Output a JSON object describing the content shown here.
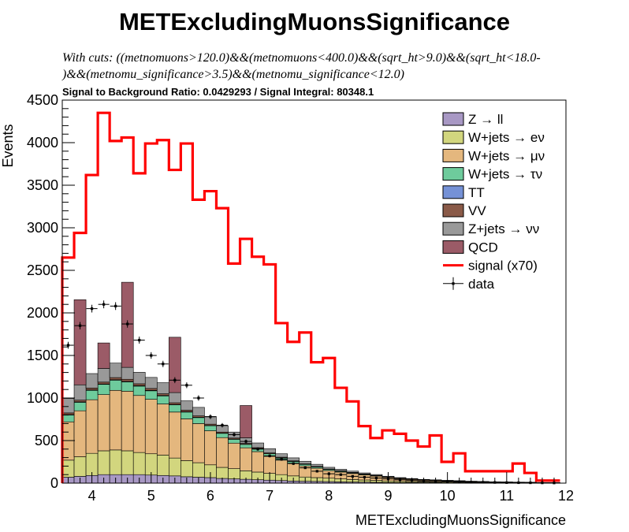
{
  "chart_data": {
    "type": "histogram-stack",
    "title": "METExcludingMuonsSignificance",
    "cuts_line1": "With cuts: ((metnomuons>120.0)&&(metnomuons<400.0)&&(sqrt_ht>9.0)&&(sqrt_ht<18.0-",
    "cuts_line2": ")&&(metnomu_significance>3.5)&&(metnomu_significance<12.0)",
    "ratio_text": "Signal to Background Ratio: 0.0429293 / Signal Integral: 80348.1",
    "xlabel": "METExcludingMuonsSignificance",
    "ylabel": "Events",
    "xlim": [
      3.5,
      12
    ],
    "ylim": [
      0,
      4500
    ],
    "xticks": [
      4,
      5,
      6,
      7,
      8,
      9,
      10,
      11,
      12
    ],
    "yticks": [
      0,
      500,
      1000,
      1500,
      2000,
      2500,
      3000,
      3500,
      4000,
      4500
    ],
    "bin_width": 0.2,
    "legend_position": "top-right",
    "legend": [
      {
        "label": "Z → ll",
        "color": "#a898c4",
        "kind": "box"
      },
      {
        "label": "W+jets → eν",
        "color": "#d2d67e",
        "kind": "box"
      },
      {
        "label": "W+jets → μν",
        "color": "#e4b77e",
        "kind": "box"
      },
      {
        "label": "W+jets → τν",
        "color": "#6ecb9c",
        "kind": "box"
      },
      {
        "label": "TT",
        "color": "#7591d6",
        "kind": "box"
      },
      {
        "label": "VV",
        "color": "#8a5a48",
        "kind": "box"
      },
      {
        "label": "Z+jets → νν",
        "color": "#999999",
        "kind": "box"
      },
      {
        "label": "QCD",
        "color": "#9b5b67",
        "kind": "box"
      },
      {
        "label": "signal (x70)",
        "color": "#ff0000",
        "kind": "line"
      },
      {
        "label": "data",
        "color": "#000000",
        "kind": "marker"
      }
    ],
    "bin_edges": [
      3.5,
      3.7,
      3.9,
      4.1,
      4.3,
      4.5,
      4.7,
      4.9,
      5.1,
      5.3,
      5.5,
      5.7,
      5.9,
      6.1,
      6.3,
      6.5,
      6.7,
      6.9,
      7.1,
      7.3,
      7.5,
      7.7,
      7.9,
      8.1,
      8.3,
      8.5,
      8.7,
      8.9,
      9.1,
      9.3,
      9.5,
      9.7,
      9.9,
      10.1,
      10.3,
      10.5,
      10.7,
      10.9,
      11.1,
      11.3,
      11.5,
      11.7,
      11.9
    ],
    "series": [
      {
        "name": "Z → ll",
        "color": "#a898c4",
        "values": [
          70,
          80,
          90,
          100,
          100,
          100,
          100,
          95,
          90,
          85,
          75,
          70,
          65,
          55,
          50,
          45,
          40,
          35,
          30,
          25,
          22,
          20,
          18,
          15,
          13,
          12,
          10,
          8,
          7,
          6,
          5,
          5,
          4,
          4,
          3,
          3,
          2,
          2,
          2,
          2,
          1,
          1
        ]
      },
      {
        "name": "W+jets → eν",
        "color": "#d2d67e",
        "values": [
          200,
          230,
          260,
          280,
          290,
          280,
          260,
          250,
          240,
          210,
          190,
          170,
          150,
          130,
          120,
          100,
          90,
          80,
          70,
          60,
          50,
          45,
          40,
          35,
          30,
          25,
          22,
          18,
          15,
          12,
          10,
          9,
          8,
          7,
          6,
          5,
          4,
          4,
          3,
          3,
          2,
          2
        ]
      },
      {
        "name": "W+jets → μν",
        "color": "#e4b77e",
        "values": [
          450,
          540,
          630,
          660,
          700,
          700,
          670,
          640,
          600,
          540,
          490,
          460,
          400,
          350,
          300,
          270,
          240,
          200,
          170,
          150,
          130,
          110,
          90,
          80,
          70,
          60,
          50,
          40,
          30,
          25,
          20,
          18,
          15,
          12,
          10,
          8,
          7,
          6,
          5,
          4,
          3,
          3
        ]
      },
      {
        "name": "W+jets → τν",
        "color": "#6ecb9c",
        "values": [
          80,
          100,
          110,
          120,
          120,
          110,
          110,
          100,
          95,
          85,
          80,
          70,
          60,
          50,
          45,
          40,
          35,
          30,
          25,
          20,
          18,
          15,
          12,
          10,
          8,
          7,
          6,
          5,
          4,
          3,
          3,
          2,
          2,
          2,
          1,
          1,
          1,
          1,
          1,
          1,
          0,
          0
        ]
      },
      {
        "name": "TT",
        "color": "#7591d6",
        "values": [
          5,
          5,
          5,
          5,
          5,
          5,
          5,
          5,
          5,
          4,
          4,
          4,
          3,
          3,
          3,
          2,
          2,
          2,
          2,
          1,
          1,
          1,
          1,
          1,
          1,
          1,
          0,
          0,
          0,
          0,
          0,
          0,
          0,
          0,
          0,
          0,
          0,
          0,
          0,
          0,
          0,
          0
        ]
      },
      {
        "name": "VV",
        "color": "#8a5a48",
        "values": [
          20,
          20,
          22,
          22,
          25,
          25,
          22,
          22,
          20,
          20,
          18,
          16,
          15,
          12,
          12,
          10,
          10,
          8,
          8,
          6,
          6,
          5,
          5,
          4,
          4,
          3,
          3,
          2,
          2,
          2,
          1,
          1,
          1,
          1,
          1,
          1,
          0,
          0,
          0,
          0,
          0,
          0
        ]
      },
      {
        "name": "Z+jets → νν",
        "color": "#999999",
        "values": [
          170,
          180,
          170,
          160,
          170,
          140,
          135,
          130,
          130,
          120,
          110,
          100,
          90,
          75,
          70,
          65,
          55,
          50,
          40,
          35,
          30,
          25,
          20,
          18,
          15,
          12,
          10,
          8,
          7,
          6,
          5,
          4,
          3,
          3,
          2,
          2,
          2,
          1,
          1,
          1,
          1,
          1
        ]
      },
      {
        "name": "QCD",
        "color": "#9b5b67",
        "values": [
          0,
          1000,
          0,
          300,
          0,
          1000,
          0,
          0,
          0,
          650,
          0,
          0,
          0,
          0,
          0,
          380,
          0,
          0,
          0,
          0,
          0,
          0,
          0,
          0,
          0,
          0,
          0,
          0,
          0,
          0,
          0,
          0,
          0,
          0,
          0,
          0,
          0,
          0,
          0,
          0,
          0,
          0
        ]
      }
    ],
    "signal": {
      "name": "signal (x70)",
      "color": "#ff0000",
      "values": [
        2650,
        2940,
        3620,
        4350,
        4020,
        4060,
        3640,
        3990,
        4030,
        3680,
        3990,
        3330,
        3430,
        3230,
        2580,
        2870,
        2660,
        2570,
        1880,
        1660,
        1770,
        1420,
        1470,
        1120,
        960,
        670,
        530,
        620,
        580,
        500,
        430,
        560,
        250,
        350,
        140,
        140,
        140,
        140,
        230,
        120,
        30,
        30
      ]
    },
    "data": {
      "name": "data",
      "x": [
        3.6,
        3.8,
        4.0,
        4.2,
        4.4,
        4.6,
        4.8,
        5.0,
        5.2,
        5.4,
        5.6,
        5.8,
        6.0,
        6.2,
        6.4,
        6.6,
        6.8,
        7.0,
        7.2,
        7.4,
        7.6,
        7.8,
        8.0,
        8.2,
        8.4,
        8.6,
        8.8,
        9.0,
        9.2,
        9.4,
        9.6,
        9.8,
        10.0,
        10.2,
        10.4,
        10.6,
        10.8,
        11.0,
        11.2,
        11.4,
        11.6,
        11.8
      ],
      "y": [
        1620,
        1850,
        2050,
        2100,
        2080,
        1870,
        1680,
        1500,
        1400,
        1210,
        1150,
        1000,
        780,
        680,
        570,
        490,
        400,
        320,
        280,
        230,
        180,
        140,
        110,
        100,
        80,
        70,
        60,
        50,
        40,
        30,
        25,
        20,
        20,
        15,
        10,
        10,
        8,
        6,
        5,
        4,
        3,
        2
      ]
    }
  }
}
